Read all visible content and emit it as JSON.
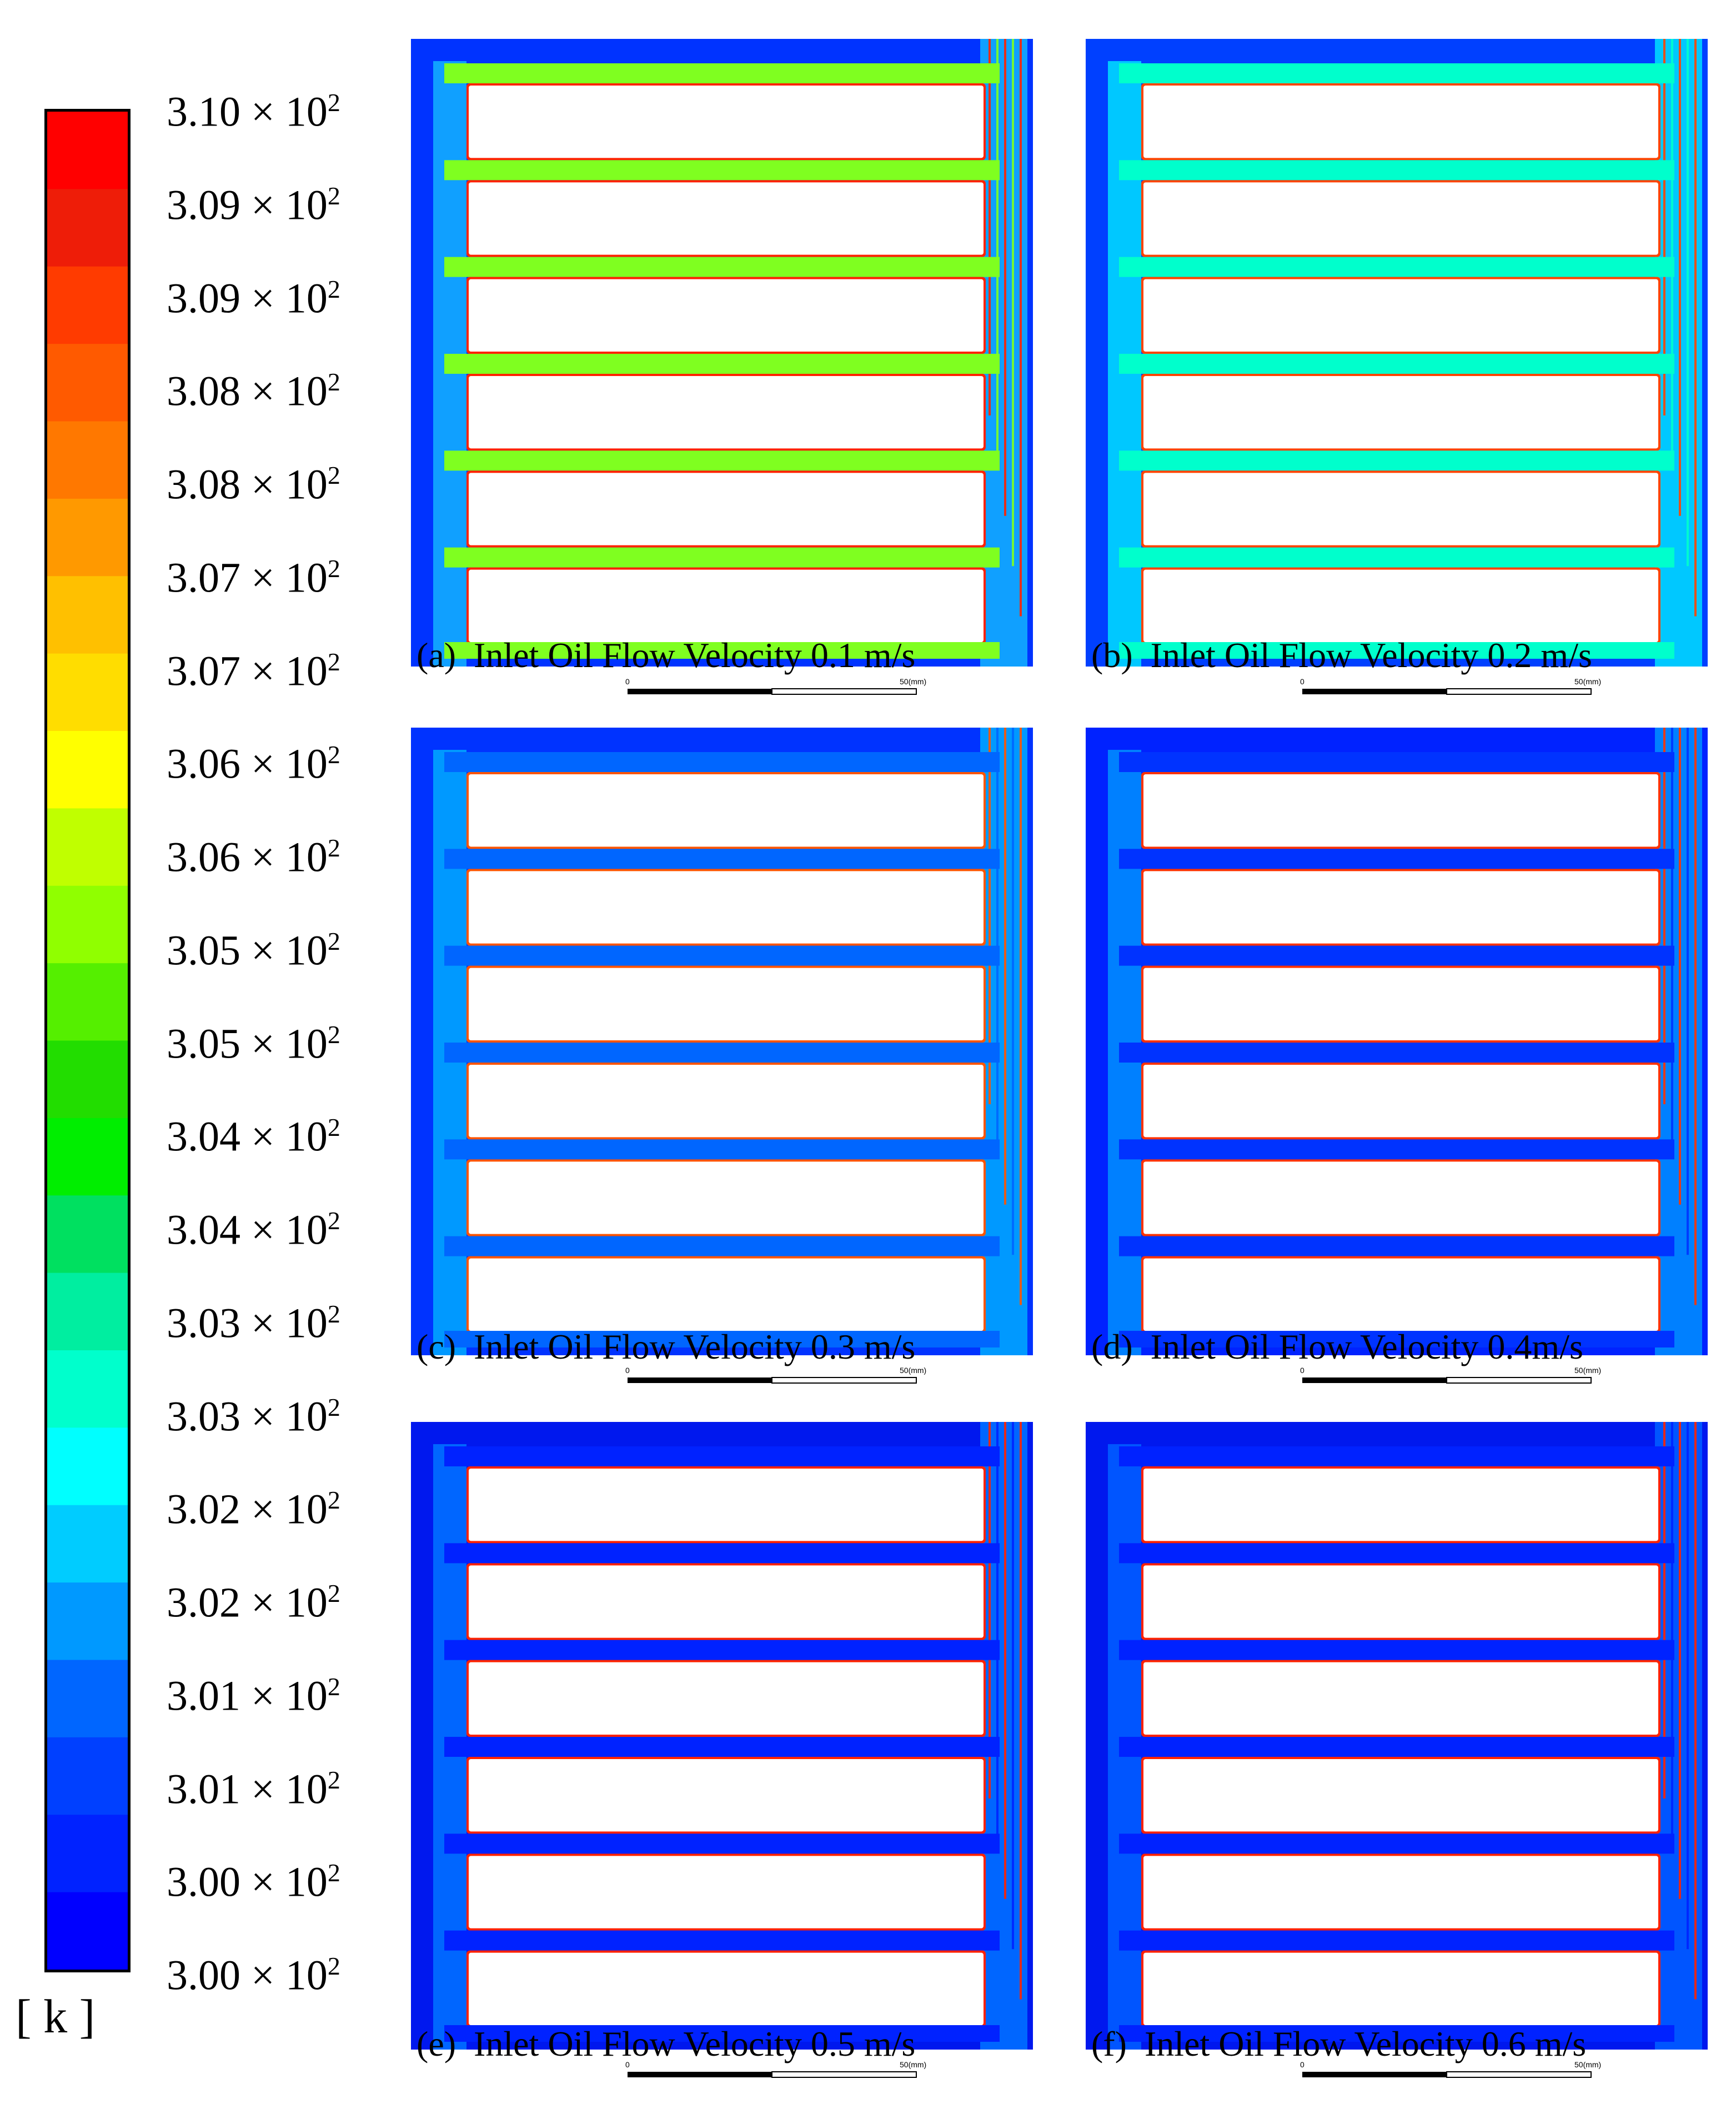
{
  "colorbar": {
    "unit": "[ k ]",
    "tick_labels": [
      {
        "mantissa": "3.10",
        "exp": "2"
      },
      {
        "mantissa": "3.09",
        "exp": "2"
      },
      {
        "mantissa": "3.09",
        "exp": "2"
      },
      {
        "mantissa": "3.08",
        "exp": "2"
      },
      {
        "mantissa": "3.08",
        "exp": "2"
      },
      {
        "mantissa": "3.07",
        "exp": "2"
      },
      {
        "mantissa": "3.07",
        "exp": "2"
      },
      {
        "mantissa": "3.06",
        "exp": "2"
      },
      {
        "mantissa": "3.06",
        "exp": "2"
      },
      {
        "mantissa": "3.05",
        "exp": "2"
      },
      {
        "mantissa": "3.05",
        "exp": "2"
      },
      {
        "mantissa": "3.04",
        "exp": "2"
      },
      {
        "mantissa": "3.04",
        "exp": "2"
      },
      {
        "mantissa": "3.03",
        "exp": "2"
      },
      {
        "mantissa": "3.03",
        "exp": "2"
      },
      {
        "mantissa": "3.02",
        "exp": "2"
      },
      {
        "mantissa": "3.02",
        "exp": "2"
      },
      {
        "mantissa": "3.01",
        "exp": "2"
      },
      {
        "mantissa": "3.01",
        "exp": "2"
      },
      {
        "mantissa": "3.00",
        "exp": "2"
      },
      {
        "mantissa": "3.00",
        "exp": "2"
      }
    ],
    "colors_top_to_bottom": [
      "#ff0000",
      "#ee1d08",
      "#ff3b00",
      "#ff5a00",
      "#ff7800",
      "#ff9900",
      "#ffc000",
      "#ffdd00",
      "#ffff00",
      "#c0ff00",
      "#90ff00",
      "#55ef00",
      "#22dd00",
      "#00ee00",
      "#00e060",
      "#00eea0",
      "#00ffcc",
      "#00ffff",
      "#00ccff",
      "#0099ff",
      "#0066ff",
      "#0040ff",
      "#0022ff",
      "#0000ff"
    ],
    "times_symbol": "×",
    "base": "10"
  },
  "chart_data": [
    {
      "type": "heatmap",
      "title": "(a) Inlet Oil Flow Velocity 0.1 m/s",
      "inlet_velocity_m_s": 0.1,
      "scale_bar": {
        "start": "0",
        "end": "50",
        "unit": "(mm)"
      },
      "channel_fill": "#7fff20",
      "bulk_fill": "#10a0ff",
      "outer_fill": "#0033ff",
      "wall_fill": "#ff2200"
    },
    {
      "type": "heatmap",
      "title": "(b) Inlet Oil Flow Velocity 0.2 m/s",
      "inlet_velocity_m_s": 0.2,
      "scale_bar": {
        "start": "0",
        "end": "50",
        "unit": "(mm)"
      },
      "channel_fill": "#00ffcc",
      "bulk_fill": "#00c8ff",
      "outer_fill": "#0040ff",
      "wall_fill": "#ff4400"
    },
    {
      "type": "heatmap",
      "title": "(c) Inlet Oil Flow Velocity 0.3 m/s",
      "inlet_velocity_m_s": 0.3,
      "scale_bar": {
        "start": "0",
        "end": "50",
        "unit": "(mm)"
      },
      "channel_fill": "#0066ff",
      "bulk_fill": "#0099ff",
      "outer_fill": "#0033ff",
      "wall_fill": "#ff5500"
    },
    {
      "type": "heatmap",
      "title": "(d) Inlet Oil Flow Velocity 0.4m/s",
      "inlet_velocity_m_s": 0.4,
      "scale_bar": {
        "start": "0",
        "end": "50",
        "unit": "(mm)"
      },
      "channel_fill": "#0033ff",
      "bulk_fill": "#0080ff",
      "outer_fill": "#0022ff",
      "wall_fill": "#ff3300"
    },
    {
      "type": "heatmap",
      "title": "(e) Inlet Oil Flow Velocity 0.5 m/s",
      "inlet_velocity_m_s": 0.5,
      "scale_bar": {
        "start": "0",
        "end": "50",
        "unit": "(mm)"
      },
      "channel_fill": "#0022ff",
      "bulk_fill": "#0066ff",
      "outer_fill": "#0018ee",
      "wall_fill": "#ff2200"
    },
    {
      "type": "heatmap",
      "title": "(f) Inlet Oil Flow Velocity 0.6 m/s",
      "inlet_velocity_m_s": 0.6,
      "scale_bar": {
        "start": "0",
        "end": "50",
        "unit": "(mm)"
      },
      "channel_fill": "#0022ff",
      "bulk_fill": "#0055ff",
      "outer_fill": "#0018ee",
      "wall_fill": "#ff2200"
    }
  ]
}
